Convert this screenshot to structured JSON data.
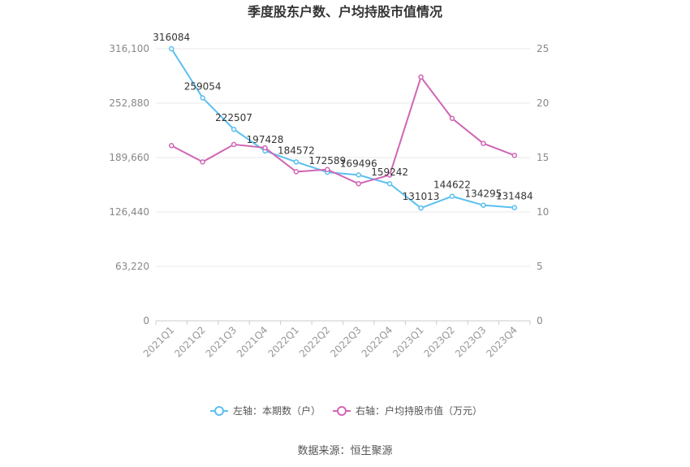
{
  "chart_data": {
    "type": "line",
    "title": "季度股东户数、户均持股市值情况",
    "categories": [
      "2021Q1",
      "2021Q2",
      "2021Q3",
      "2021Q4",
      "2022Q1",
      "2022Q2",
      "2022Q3",
      "2022Q4",
      "2023Q1",
      "2023Q2",
      "2023Q3",
      "2023Q4"
    ],
    "left_axis": {
      "ticks": [
        "0",
        "63,220",
        "126,440",
        "189,660",
        "252,880",
        "316,100"
      ],
      "ylim": [
        0,
        316100
      ]
    },
    "right_axis": {
      "ticks": [
        "0",
        "5",
        "10",
        "15",
        "20",
        "25"
      ],
      "ylim": [
        0,
        25
      ]
    },
    "series": [
      {
        "name": "左轴：本期数（户）",
        "axis": "left",
        "color": "#5bc0f0",
        "values": [
          316084,
          259054,
          222507,
          197428,
          184572,
          172589,
          169496,
          159242,
          131013,
          144622,
          134295,
          131484
        ],
        "labels": [
          "316084",
          "259054",
          "222507",
          "197428",
          "184572",
          "172589",
          "169496",
          "159242",
          "131013",
          "144622",
          "134295",
          "131484"
        ]
      },
      {
        "name": "右轴：户均持股市值（万元）",
        "axis": "right",
        "color": "#d066b4",
        "values": [
          16.1,
          14.6,
          16.2,
          15.9,
          13.7,
          13.9,
          12.6,
          13.4,
          22.4,
          18.6,
          16.3,
          15.2
        ]
      }
    ],
    "legend_position": "bottom",
    "grid": true
  },
  "footer": {
    "source": "数据来源：恒生聚源"
  }
}
